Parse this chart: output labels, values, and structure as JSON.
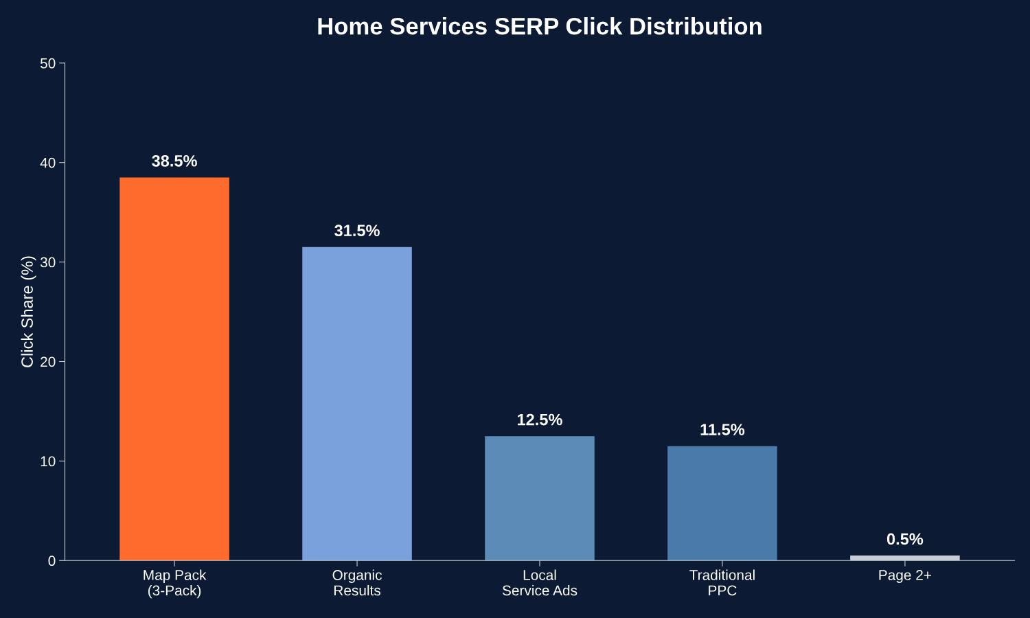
{
  "chart_data": {
    "type": "bar",
    "title": "Home Services SERP Click Distribution",
    "ylabel": "Click Share (%)",
    "categories": [
      "Map Pack\n(3-Pack)",
      "Organic\nResults",
      "Local\nService Ads",
      "Traditional\nPPC",
      "Page 2+"
    ],
    "values": [
      38.5,
      31.5,
      12.5,
      11.5,
      0.5
    ],
    "colors": [
      "#ff6b2c",
      "#7aa1dc",
      "#5b8bb6",
      "#4a7aa9",
      "#c9ced6"
    ],
    "value_labels": [
      "38.5%",
      "31.5%",
      "12.5%",
      "11.5%",
      "0.5%"
    ],
    "ylim": [
      0,
      50
    ],
    "yticks": [
      0,
      10,
      20,
      30,
      40,
      50
    ],
    "grid": false,
    "legend": false
  }
}
